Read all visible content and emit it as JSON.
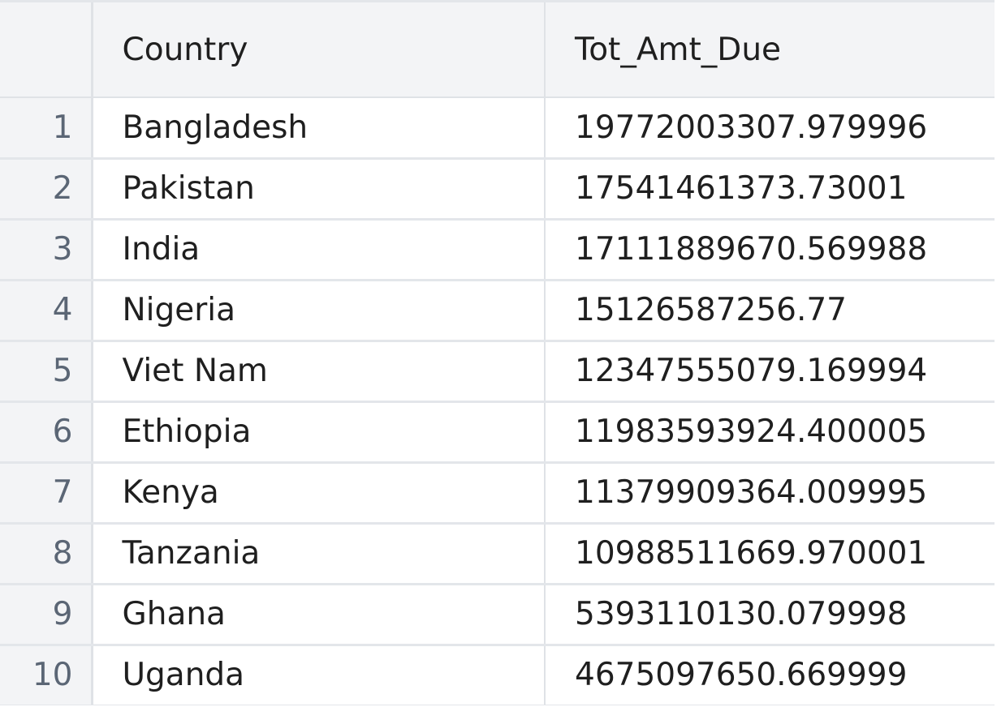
{
  "grid": {
    "columns": [
      {
        "key": "index",
        "label": ""
      },
      {
        "key": "country",
        "label": "Country"
      },
      {
        "key": "amount",
        "label": "Tot_Amt_Due"
      }
    ],
    "rows": [
      {
        "index": "1",
        "country": "Bangladesh",
        "amount": "19772003307.979996"
      },
      {
        "index": "2",
        "country": "Pakistan",
        "amount": "17541461373.73001"
      },
      {
        "index": "3",
        "country": "India",
        "amount": "17111889670.569988"
      },
      {
        "index": "4",
        "country": "Nigeria",
        "amount": "15126587256.77"
      },
      {
        "index": "5",
        "country": "Viet Nam",
        "amount": "12347555079.169994"
      },
      {
        "index": "6",
        "country": "Ethiopia",
        "amount": "11983593924.400005"
      },
      {
        "index": "7",
        "country": "Kenya",
        "amount": "11379909364.009995"
      },
      {
        "index": "8",
        "country": "Tanzania",
        "amount": "10988511669.970001"
      },
      {
        "index": "9",
        "country": "Ghana",
        "amount": "5393110130.079998"
      },
      {
        "index": "10",
        "country": "Uganda",
        "amount": "4675097650.669999"
      }
    ]
  }
}
